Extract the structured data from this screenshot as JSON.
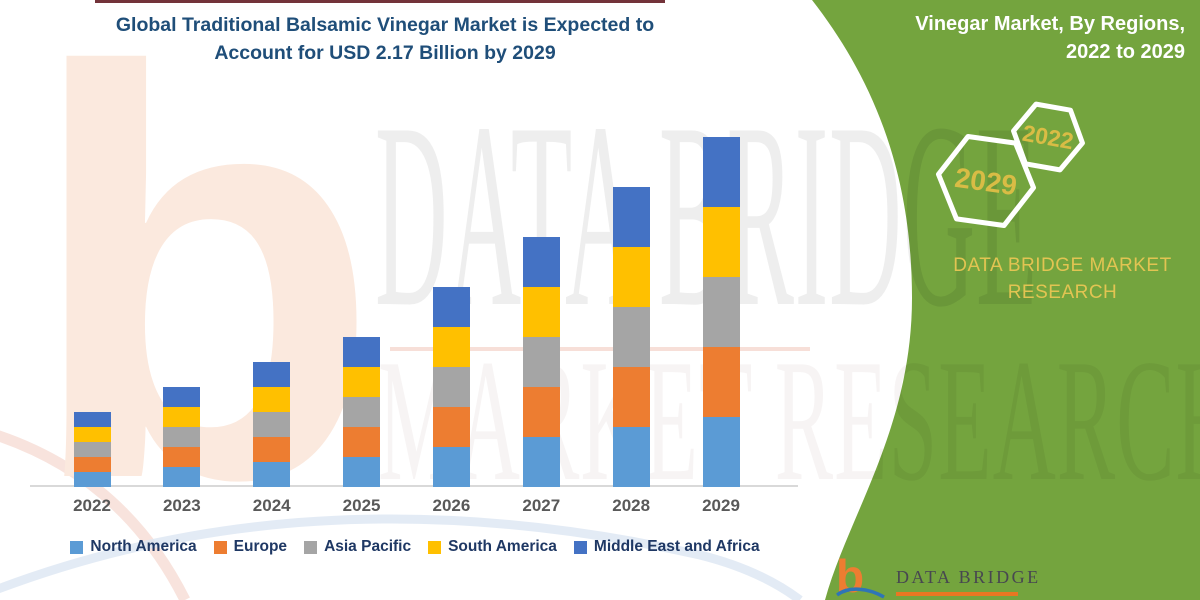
{
  "header": {
    "title_line1": "Global Traditional Balsamic Vinegar Market is Expected to",
    "title_line2": "Account for USD 2.17 Billion by 2029"
  },
  "side_panel": {
    "heading_line1": "Vinegar Market, By Regions,",
    "heading_line2": "2022 to 2029",
    "hexagon_years": {
      "small": "2022",
      "large": "2029"
    },
    "brand_line1": "DATA BRIDGE MARKET",
    "brand_line2": "RESEARCH"
  },
  "footer_logo": {
    "brand": "DATA BRIDGE",
    "glyph": "b"
  },
  "watermark": {
    "line1": "DATA BRIDGE",
    "line2": "MARKET RESEARCH",
    "glyph": "b"
  },
  "colors": {
    "panel_green": "#74A43E",
    "accent_gold": "#D9BC45",
    "title_navy": "#1F4E79",
    "legend_navy": "#1F3864"
  },
  "chart_data": {
    "type": "bar",
    "stacked": true,
    "title": "Global Traditional Balsamic Vinegar Market is Expected to Account for USD 2.17 Billion by 2029",
    "categories": [
      "2022",
      "2023",
      "2024",
      "2025",
      "2026",
      "2027",
      "2028",
      "2029"
    ],
    "series": [
      {
        "name": "North America",
        "color": "#5B9BD5",
        "values": [
          15,
          20,
          25,
          30,
          40,
          50,
          60,
          70
        ]
      },
      {
        "name": "Europe",
        "color": "#ED7D31",
        "values": [
          15,
          20,
          25,
          30,
          40,
          50,
          60,
          70
        ]
      },
      {
        "name": "Asia Pacific",
        "color": "#A5A5A5",
        "values": [
          15,
          20,
          25,
          30,
          40,
          50,
          60,
          70
        ]
      },
      {
        "name": "South America",
        "color": "#FFC000",
        "values": [
          15,
          20,
          25,
          30,
          40,
          50,
          60,
          70
        ]
      },
      {
        "name": "Middle East and Africa",
        "color": "#4472C4",
        "values": [
          15,
          20,
          25,
          30,
          40,
          50,
          60,
          70
        ]
      }
    ],
    "xlabel": "",
    "ylabel": "",
    "value_axis_visible": false,
    "units": "relative (no value axis shown)",
    "grid": false,
    "legend_position": "bottom",
    "stack_order_bottom_to_top": [
      "North America",
      "Europe",
      "Asia Pacific",
      "South America",
      "Middle East and Africa"
    ]
  }
}
